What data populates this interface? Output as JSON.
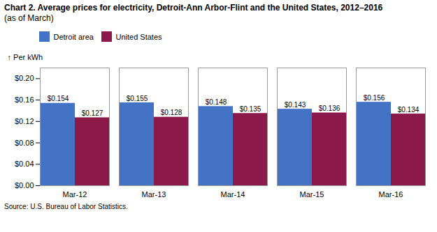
{
  "chart_data": {
    "type": "bar",
    "title": "Chart 2. Average prices for electricity, Detroit-Ann Arbor-Flint and the United States, 2012–2016",
    "subtitle": "(as of March)",
    "ylabel": "Per kWh",
    "caption": "Source: U.S. Bureau of Labor Statistics.",
    "categories": [
      "Mar-12",
      "Mar-13",
      "Mar-14",
      "Mar-15",
      "Mar-16"
    ],
    "series": [
      {
        "name": "Detroit area",
        "color": "#4472C4",
        "values": [
          0.154,
          0.155,
          0.148,
          0.143,
          0.156
        ],
        "value_labels": [
          "$0.154",
          "$0.155",
          "$0.148",
          "$0.143",
          "$0.156"
        ]
      },
      {
        "name": "United States",
        "color": "#8B1A4A",
        "values": [
          0.127,
          0.128,
          0.135,
          0.136,
          0.134
        ],
        "value_labels": [
          "$0.127",
          "$0.128",
          "$0.135",
          "$0.136",
          "$0.134"
        ]
      }
    ],
    "ylim": [
      0,
      0.22
    ],
    "yticks": [
      {
        "value": 0.0,
        "label": "$0.00"
      },
      {
        "value": 0.04,
        "label": "$0.04"
      },
      {
        "value": 0.08,
        "label": "$0.08"
      },
      {
        "value": 0.12,
        "label": "$0.12"
      },
      {
        "value": 0.16,
        "label": "$0.16"
      },
      {
        "value": 0.2,
        "label": "$0.20"
      }
    ],
    "grid": false,
    "legend": "top",
    "data_labels": true
  }
}
